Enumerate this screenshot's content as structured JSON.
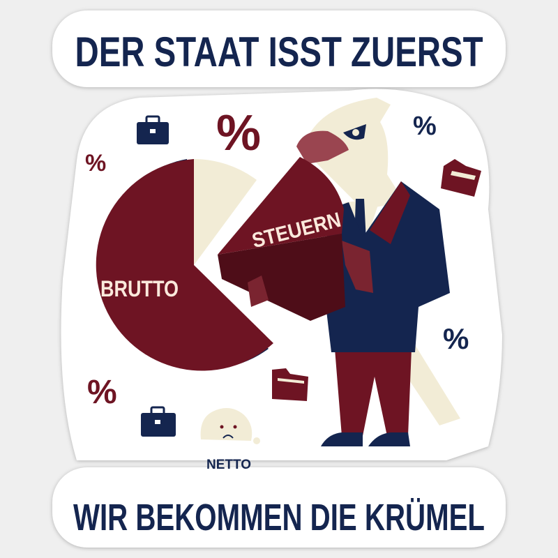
{
  "header": {
    "title": "DER STAAT ISST ZUERST"
  },
  "footer": {
    "title": "WIR BEKOMMEN DIE KRÜMEL"
  },
  "illustration": {
    "pie_label": "BRUTTO",
    "slice_label": "STEUERN",
    "crumb_label": "NETTO",
    "percent_symbol": "%"
  },
  "colors": {
    "maroon": "#6e1423",
    "navy": "#14254f",
    "cream": "#f2ecd6",
    "sticker": "#ffffff"
  }
}
